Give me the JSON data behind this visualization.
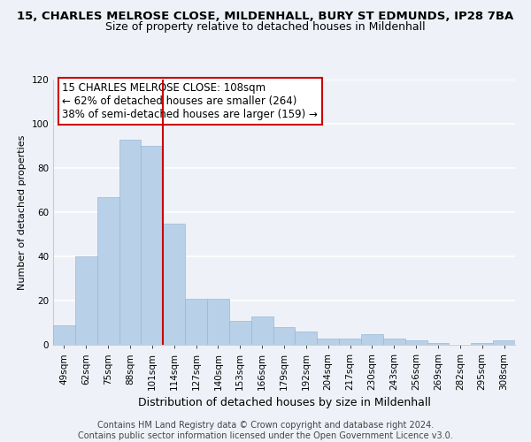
{
  "title": "15, CHARLES MELROSE CLOSE, MILDENHALL, BURY ST EDMUNDS, IP28 7BA",
  "subtitle": "Size of property relative to detached houses in Mildenhall",
  "xlabel": "Distribution of detached houses by size in Mildenhall",
  "ylabel": "Number of detached properties",
  "bar_labels": [
    "49sqm",
    "62sqm",
    "75sqm",
    "88sqm",
    "101sqm",
    "114sqm",
    "127sqm",
    "140sqm",
    "153sqm",
    "166sqm",
    "179sqm",
    "192sqm",
    "204sqm",
    "217sqm",
    "230sqm",
    "243sqm",
    "256sqm",
    "269sqm",
    "282sqm",
    "295sqm",
    "308sqm"
  ],
  "bar_values": [
    9,
    40,
    67,
    93,
    90,
    55,
    21,
    21,
    11,
    13,
    8,
    6,
    3,
    3,
    5,
    3,
    2,
    1,
    0,
    1,
    2
  ],
  "bar_color": "#b8d0e8",
  "bar_edge_color": "#9ab8d4",
  "vline_color": "#cc0000",
  "ylim": [
    0,
    120
  ],
  "yticks": [
    0,
    20,
    40,
    60,
    80,
    100,
    120
  ],
  "annotation_line1": "15 CHARLES MELROSE CLOSE: 108sqm",
  "annotation_line2": "← 62% of detached houses are smaller (264)",
  "annotation_line3": "38% of semi-detached houses are larger (159) →",
  "footer1": "Contains HM Land Registry data © Crown copyright and database right 2024.",
  "footer2": "Contains public sector information licensed under the Open Government Licence v3.0.",
  "background_color": "#eef2f8",
  "grid_color": "#ffffff",
  "title_fontsize": 9.5,
  "subtitle_fontsize": 9,
  "ylabel_fontsize": 8,
  "xlabel_fontsize": 9,
  "tick_fontsize": 7.5,
  "annotation_fontsize": 8.5,
  "footer_fontsize": 7
}
